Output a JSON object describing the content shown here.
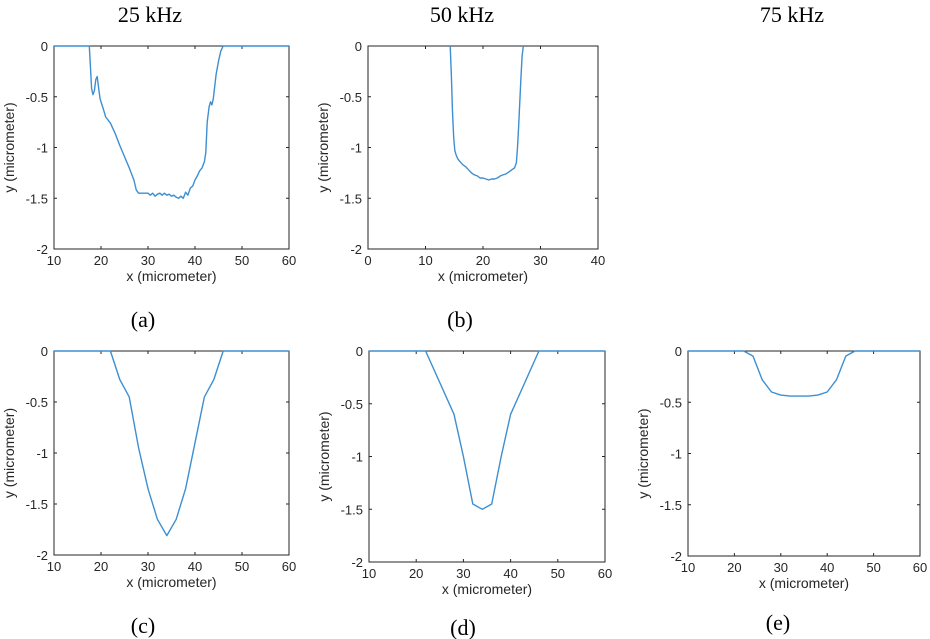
{
  "column_headers": [
    "25 kHz",
    "50 kHz",
    "75 kHz"
  ],
  "colors": {
    "series": "#3d8fd1",
    "axis": "#262626"
  },
  "chart_data": [
    {
      "type": "line",
      "panel_label": "(a)",
      "xlabel": "x (micrometer)",
      "ylabel": "y (micrometer)",
      "xlim": [
        10,
        60
      ],
      "ylim": [
        -2,
        0
      ],
      "xticks": [
        "10",
        "20",
        "30",
        "40",
        "50",
        "60"
      ],
      "yticks": [
        "0",
        "-0.5",
        "-1",
        "-1.5",
        "-2"
      ],
      "series": [
        {
          "x": [
            10,
            17.5,
            17.8,
            18,
            18.3,
            18.6,
            18.9,
            19.2,
            19.5,
            19.8,
            20,
            20.5,
            21,
            22,
            23,
            24,
            25,
            26,
            27,
            27.5,
            28,
            29,
            30,
            30.5,
            31,
            31.5,
            32,
            32.5,
            33,
            33.5,
            34,
            34.5,
            35,
            35.5,
            36,
            36.5,
            37,
            37.5,
            38,
            38.5,
            39,
            39.5,
            40,
            40.5,
            41,
            41.5,
            42,
            42.3,
            42.6,
            43,
            43.3,
            43.6,
            43.9,
            44.2,
            44.5,
            45,
            45.5,
            46,
            60
          ],
          "y": [
            0,
            0,
            -0.25,
            -0.42,
            -0.48,
            -0.44,
            -0.33,
            -0.3,
            -0.42,
            -0.52,
            -0.55,
            -0.62,
            -0.7,
            -0.76,
            -0.86,
            -0.98,
            -1.09,
            -1.2,
            -1.32,
            -1.42,
            -1.45,
            -1.45,
            -1.45,
            -1.47,
            -1.45,
            -1.48,
            -1.46,
            -1.45,
            -1.47,
            -1.45,
            -1.47,
            -1.46,
            -1.48,
            -1.47,
            -1.49,
            -1.5,
            -1.48,
            -1.5,
            -1.44,
            -1.47,
            -1.4,
            -1.38,
            -1.32,
            -1.28,
            -1.23,
            -1.2,
            -1.14,
            -1.05,
            -0.75,
            -0.6,
            -0.55,
            -0.58,
            -0.52,
            -0.4,
            -0.28,
            -0.15,
            -0.05,
            0,
            0
          ]
        }
      ]
    },
    {
      "type": "line",
      "panel_label": "(b)",
      "xlabel": "x (micrometer)",
      "ylabel": "y (micrometer)",
      "xlim": [
        0,
        40
      ],
      "ylim": [
        -2,
        0
      ],
      "xticks": [
        "0",
        "10",
        "20",
        "30",
        "40"
      ],
      "yticks": [
        "0",
        "-0.5",
        "-1",
        "-1.5",
        "-2"
      ],
      "series": [
        {
          "x": [
            14.3,
            14.5,
            14.7,
            14.9,
            15.1,
            15.3,
            15.6,
            16,
            16.5,
            17,
            17.5,
            18,
            18.5,
            19,
            19.5,
            20,
            20.5,
            21,
            21.5,
            22,
            22.5,
            23,
            23.5,
            24,
            24.5,
            25,
            25.5,
            25.8,
            26,
            26.2,
            26.4,
            26.6,
            26.8,
            27
          ],
          "y": [
            0,
            -0.3,
            -0.65,
            -0.9,
            -1.03,
            -1.07,
            -1.11,
            -1.14,
            -1.17,
            -1.19,
            -1.22,
            -1.25,
            -1.27,
            -1.28,
            -1.3,
            -1.3,
            -1.31,
            -1.32,
            -1.31,
            -1.31,
            -1.3,
            -1.28,
            -1.27,
            -1.26,
            -1.24,
            -1.22,
            -1.2,
            -1.15,
            -1.0,
            -0.8,
            -0.55,
            -0.3,
            -0.1,
            0
          ]
        }
      ]
    },
    {
      "type": "line",
      "panel_label": "(c)",
      "xlabel": "x (micrometer)",
      "ylabel": "y (micrometer)",
      "xlim": [
        10,
        60
      ],
      "ylim": [
        -2,
        0
      ],
      "xticks": [
        "10",
        "20",
        "30",
        "40",
        "50",
        "60"
      ],
      "yticks": [
        "0",
        "-0.5",
        "-1",
        "-1.5",
        "-2"
      ],
      "series": [
        {
          "x": [
            10,
            22,
            24,
            26,
            28,
            30,
            32,
            34,
            36,
            38,
            40,
            42,
            44,
            46,
            60
          ],
          "y": [
            0,
            0,
            -0.28,
            -0.45,
            -0.95,
            -1.35,
            -1.65,
            -1.81,
            -1.65,
            -1.35,
            -0.9,
            -0.45,
            -0.28,
            0,
            0
          ]
        }
      ]
    },
    {
      "type": "line",
      "panel_label": "(d)",
      "xlabel": "x (micrometer)",
      "ylabel": "y (micrometer)",
      "xlim": [
        10,
        60
      ],
      "ylim": [
        -2,
        0
      ],
      "xticks": [
        "10",
        "20",
        "30",
        "40",
        "50",
        "60"
      ],
      "yticks": [
        "0",
        "-0.5",
        "-1",
        "-1.5",
        "-2"
      ],
      "series": [
        {
          "x": [
            10,
            22,
            25,
            28,
            30,
            32,
            34,
            36,
            38,
            40,
            43,
            46,
            60
          ],
          "y": [
            0,
            0,
            -0.3,
            -0.6,
            -1.0,
            -1.45,
            -1.5,
            -1.45,
            -1.0,
            -0.6,
            -0.3,
            0,
            0
          ]
        }
      ]
    },
    {
      "type": "line",
      "panel_label": "(e)",
      "xlabel": "x (micrometer)",
      "ylabel": "y (micrometer)",
      "xlim": [
        10,
        60
      ],
      "ylim": [
        -2,
        0
      ],
      "xticks": [
        "10",
        "20",
        "30",
        "40",
        "50",
        "60"
      ],
      "yticks": [
        "0",
        "-0.5",
        "-1",
        "-1.5",
        "-2"
      ],
      "series": [
        {
          "x": [
            10,
            22,
            24,
            26,
            28,
            30,
            32,
            34,
            36,
            38,
            40,
            42,
            44,
            46,
            60
          ],
          "y": [
            0,
            0,
            -0.05,
            -0.28,
            -0.4,
            -0.43,
            -0.44,
            -0.44,
            -0.44,
            -0.43,
            -0.4,
            -0.28,
            -0.05,
            0,
            0
          ]
        }
      ]
    }
  ]
}
